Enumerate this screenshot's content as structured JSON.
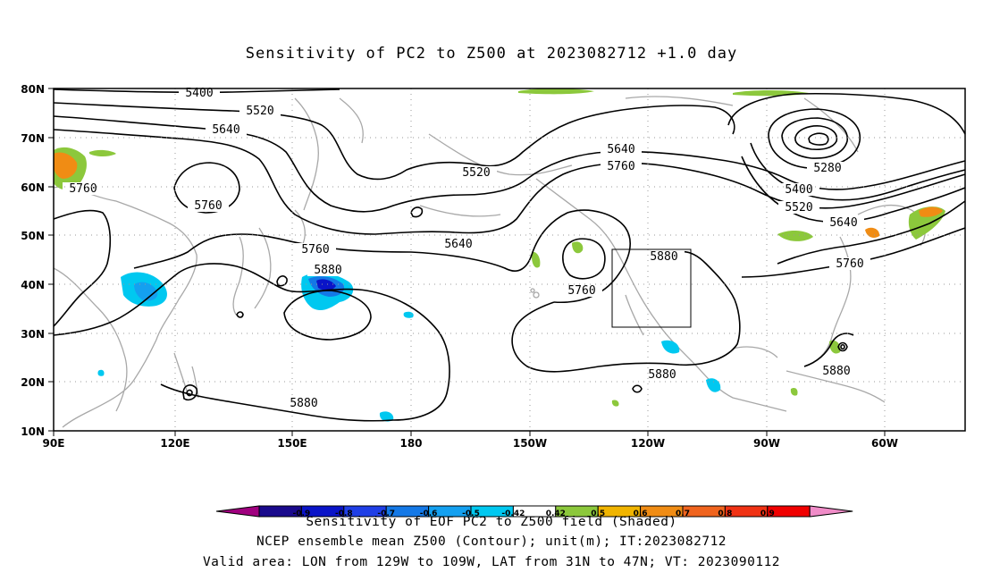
{
  "title": "Sensitivity of PC2 to Z500 at 2023082712 +1.0 day",
  "lat_labels": [
    "80N",
    "70N",
    "60N",
    "50N",
    "40N",
    "30N",
    "20N",
    "10N"
  ],
  "lon_labels": [
    "90E",
    "120E",
    "150E",
    "180",
    "150W",
    "120W",
    "90W",
    "60W"
  ],
  "contour_labels": {
    "c5400a": "5400",
    "c5520a": "5520",
    "c5640a": "5640",
    "c5760a": "5760",
    "c5760b": "5760",
    "c5520b": "5520",
    "c5640b": "5640",
    "c5640c": "5640",
    "c5760c": "5760",
    "c5760d": "5760",
    "c5880a": "5880",
    "c5880b": "5880",
    "c5760e": "5760",
    "c5880c": "5880",
    "c5880d": "5880",
    "c5880e": "5880",
    "c5280": "5280",
    "c5400b": "5400",
    "c5520c": "5520",
    "c5640d": "5640",
    "c5760f": "5760"
  },
  "legend": {
    "colors": [
      "#a0007f",
      "#1a0a8c",
      "#0a14c8",
      "#1f3fe6",
      "#1478e6",
      "#14a0f0",
      "#00c8f0",
      "#ffffff",
      "#8cc83c",
      "#f0b400",
      "#f08c14",
      "#f0641e",
      "#f03214",
      "#f00000",
      "#f08cc8"
    ],
    "labels": [
      "-0.9",
      "-0.8",
      "-0.7",
      "-0.6",
      "-0.5",
      "-0.42",
      "0.42",
      "0.5",
      "0.6",
      "0.7",
      "0.8",
      "0.9"
    ]
  },
  "captions": {
    "line1": "Sensitivity of EOF PC2 to Z500 field (Shaded)",
    "line2": "NCEP ensemble mean Z500 (Contour); unit(m); IT:2023082712",
    "line3": "Valid area: LON from 129W to 109W, LAT from 31N to 47N; VT: 2023090112"
  }
}
